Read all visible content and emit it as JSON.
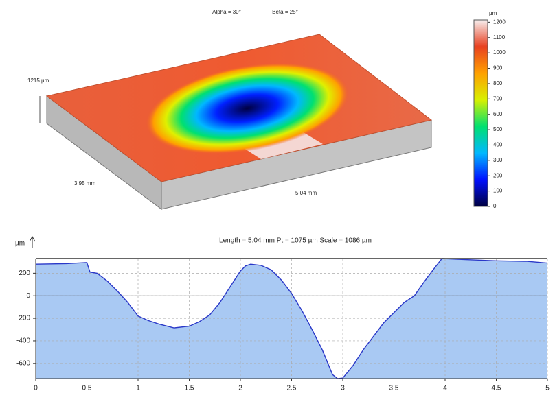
{
  "chart_data": [
    {
      "type": "surface3d",
      "annotations": [
        "Alpha = 30°",
        "Beta = 25°"
      ],
      "z_label": "1215 µm",
      "y_label": "3.95 mm",
      "x_label": "5.04 mm",
      "colorbar": {
        "label": "µm",
        "lim": [
          0,
          1215
        ],
        "ticks": [
          0,
          100,
          200,
          300,
          400,
          500,
          600,
          700,
          800,
          900,
          1000,
          1100,
          1200
        ],
        "colors": [
          "#000040",
          "#0010ff",
          "#00b8ff",
          "#00e070",
          "#d8f000",
          "#ffa000",
          "#e84020",
          "#f7f0f0"
        ]
      }
    },
    {
      "type": "area",
      "title": "Length = 5.04 mm  Pt = 1075 µm  Scale = 1086 µm",
      "y_label": "µm",
      "color": "#2a38c8",
      "fill": "#a9c9f3",
      "grid": true,
      "xlim": [
        0,
        5
      ],
      "ylim": [
        -735,
        330
      ],
      "xticks": [
        0,
        0.5,
        1,
        1.5,
        2,
        2.5,
        3,
        3.5,
        4,
        4.5,
        5
      ],
      "yticks": [
        -600,
        -400,
        -200,
        0,
        200
      ],
      "x": [
        0,
        0.3,
        0.5,
        0.53,
        0.6,
        0.7,
        0.8,
        0.9,
        1.0,
        1.1,
        1.2,
        1.35,
        1.5,
        1.6,
        1.7,
        1.8,
        1.9,
        2.0,
        2.05,
        2.1,
        2.2,
        2.3,
        2.4,
        2.5,
        2.6,
        2.7,
        2.8,
        2.9,
        2.95,
        3.0,
        3.1,
        3.2,
        3.3,
        3.4,
        3.5,
        3.6,
        3.7,
        3.8,
        3.9,
        3.97,
        4.2,
        4.5,
        4.8,
        5.0
      ],
      "values": [
        280,
        285,
        295,
        210,
        200,
        130,
        40,
        -60,
        -180,
        -220,
        -250,
        -285,
        -270,
        -230,
        -170,
        -60,
        80,
        220,
        265,
        280,
        270,
        230,
        140,
        20,
        -130,
        -300,
        -480,
        -700,
        -735,
        -730,
        -620,
        -480,
        -360,
        -240,
        -150,
        -60,
        0,
        130,
        250,
        330,
        320,
        310,
        305,
        290
      ]
    }
  ]
}
